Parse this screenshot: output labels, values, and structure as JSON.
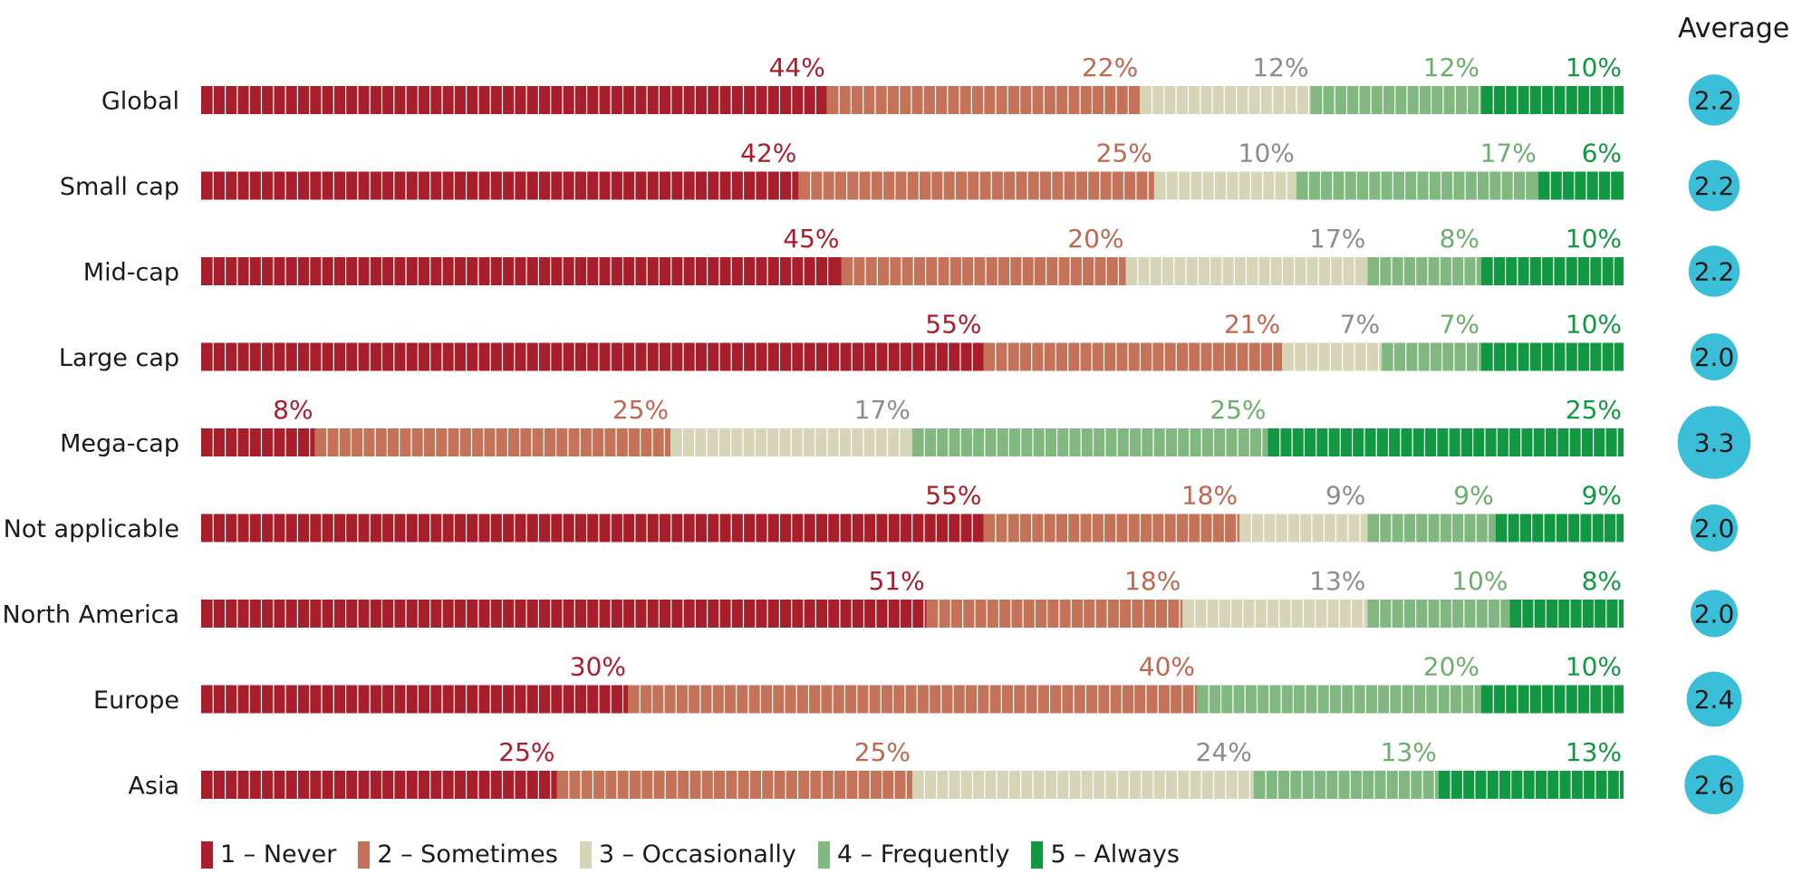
{
  "chart_data": {
    "type": "bar",
    "orientation": "horizontal",
    "stacked": true,
    "normalized_to_100": true,
    "average_header": "Average",
    "categories": [
      "Global",
      "Small cap",
      "Mid-cap",
      "Large cap",
      "Mega-cap",
      "Not applicable",
      "North America",
      "Europe",
      "Asia"
    ],
    "series": [
      {
        "name": "1 – Never",
        "color": "#a81e2b",
        "label_color": "#a81e2b",
        "values": [
          44,
          42,
          45,
          55,
          8,
          55,
          51,
          30,
          25
        ]
      },
      {
        "name": "2 – Sometimes",
        "color": "#c47358",
        "label_color": "#c0674e",
        "values": [
          22,
          25,
          20,
          21,
          25,
          18,
          18,
          40,
          25
        ]
      },
      {
        "name": "3 – Occasionally",
        "color": "#d7d5b8",
        "label_color": "#8c8c8c",
        "values": [
          12,
          10,
          17,
          7,
          17,
          9,
          13,
          0,
          24
        ]
      },
      {
        "name": "4 – Frequently",
        "color": "#80b880",
        "label_color": "#6cae6c",
        "values": [
          12,
          17,
          8,
          7,
          25,
          9,
          10,
          20,
          13
        ]
      },
      {
        "name": "5 – Always",
        "color": "#129842",
        "label_color": "#129842",
        "values": [
          10,
          6,
          10,
          10,
          25,
          9,
          8,
          10,
          13
        ]
      }
    ],
    "averages": [
      2.2,
      2.2,
      2.2,
      2.0,
      3.3,
      2.0,
      2.0,
      2.4,
      2.6
    ],
    "average_bubble_color": "#3bbfd9",
    "legend_position": "bottom-left",
    "grid": false
  }
}
